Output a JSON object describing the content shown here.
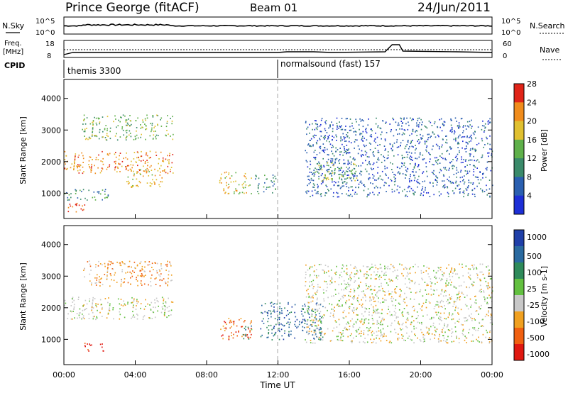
{
  "header": {
    "station": "Prince George (fitACF)",
    "beam": "Beam 01",
    "date": "24/Jun/2011"
  },
  "top_panels": {
    "nsky_label": "N.Sky",
    "nsky_ticks": [
      "10^5",
      "10^0"
    ],
    "nsearch_label": "N.Search",
    "nsearch_ticks": [
      "10^5",
      "10^0"
    ],
    "freq_label": "Freq.",
    "freq_unit": "[MHz]",
    "freq_ticks": [
      "18",
      "8"
    ],
    "nave_label": "Nave",
    "nave_ticks": [
      "60",
      "0"
    ],
    "cpid_label": "CPID",
    "cpid_modes": [
      {
        "name": "themis 3300",
        "start_hour": 0
      },
      {
        "name": "normalsound (fast) 157",
        "start_hour": 12
      }
    ]
  },
  "x_axis": {
    "label": "Time UT",
    "ticks": [
      "00:00",
      "04:00",
      "08:00",
      "12:00",
      "16:00",
      "20:00",
      "00:00"
    ],
    "range_hours": [
      0,
      24
    ]
  },
  "chart_data": [
    {
      "type": "heatmap",
      "quantity": "power",
      "ylabel": "Slant Range [km]",
      "yticks": [
        "1000",
        "2000",
        "3000",
        "4000"
      ],
      "ylim": [
        200,
        4600
      ],
      "colorbar": {
        "label": "Power [dB]",
        "ticks": [
          "4",
          "8",
          "12",
          "16",
          "20",
          "24",
          "28"
        ],
        "colors": [
          "#1d2fd6",
          "#2a5fb0",
          "#3a8a6a",
          "#5fb04a",
          "#e0c030",
          "#f08c1c",
          "#e02418"
        ]
      },
      "regions": [
        {
          "t": [
            0.0,
            6.1
          ],
          "r": [
            1650,
            2350
          ],
          "level": 5
        },
        {
          "t": [
            0.2,
            1.2
          ],
          "r": [
            350,
            700
          ],
          "level": 6
        },
        {
          "t": [
            0.0,
            2.5
          ],
          "r": [
            800,
            1150
          ],
          "level": 2
        },
        {
          "t": [
            1.0,
            6.1
          ],
          "r": [
            2700,
            3500
          ],
          "level": 3
        },
        {
          "t": [
            3.5,
            5.5
          ],
          "r": [
            1200,
            1800
          ],
          "level": 4
        },
        {
          "t": [
            8.7,
            10.5
          ],
          "r": [
            1000,
            1700
          ],
          "level": 4
        },
        {
          "t": [
            10.7,
            11.9
          ],
          "r": [
            1000,
            1600
          ],
          "level": 2
        },
        {
          "t": [
            13.5,
            24.0
          ],
          "r": [
            900,
            3400
          ],
          "level": 1
        },
        {
          "t": [
            14.0,
            16.5
          ],
          "r": [
            1400,
            2000
          ],
          "level": 3
        }
      ]
    },
    {
      "type": "heatmap",
      "quantity": "velocity",
      "ylabel": "Slant Range [km]",
      "yticks": [
        "1000",
        "2000",
        "3000",
        "4000"
      ],
      "ylim": [
        200,
        4600
      ],
      "colorbar": {
        "label": "Velocity [m s-1]",
        "ticks": [
          "1000",
          "500",
          "100",
          "25",
          "-25",
          "-100",
          "-500",
          "-1000"
        ],
        "colors": [
          "#1f3fa8",
          "#2a6aa0",
          "#2e8a5a",
          "#63c040",
          "#c8c8c8",
          "#f0a020",
          "#f06010",
          "#e01810"
        ]
      },
      "regions": [
        {
          "t": [
            0.0,
            6.1
          ],
          "r": [
            1650,
            2350
          ],
          "level": 4
        },
        {
          "t": [
            1.0,
            2.2
          ],
          "r": [
            650,
            900
          ],
          "level": 7
        },
        {
          "t": [
            1.0,
            6.1
          ],
          "r": [
            2700,
            3500
          ],
          "level": 5
        },
        {
          "t": [
            8.7,
            10.5
          ],
          "r": [
            1000,
            1700
          ],
          "level": 6
        },
        {
          "t": [
            10.0,
            10.5
          ],
          "r": [
            1000,
            1500
          ],
          "level": 2
        },
        {
          "t": [
            11.0,
            14.5
          ],
          "r": [
            1000,
            2200
          ],
          "level": 1
        },
        {
          "t": [
            13.5,
            24.0
          ],
          "r": [
            900,
            3400
          ],
          "level": 4
        }
      ]
    }
  ]
}
